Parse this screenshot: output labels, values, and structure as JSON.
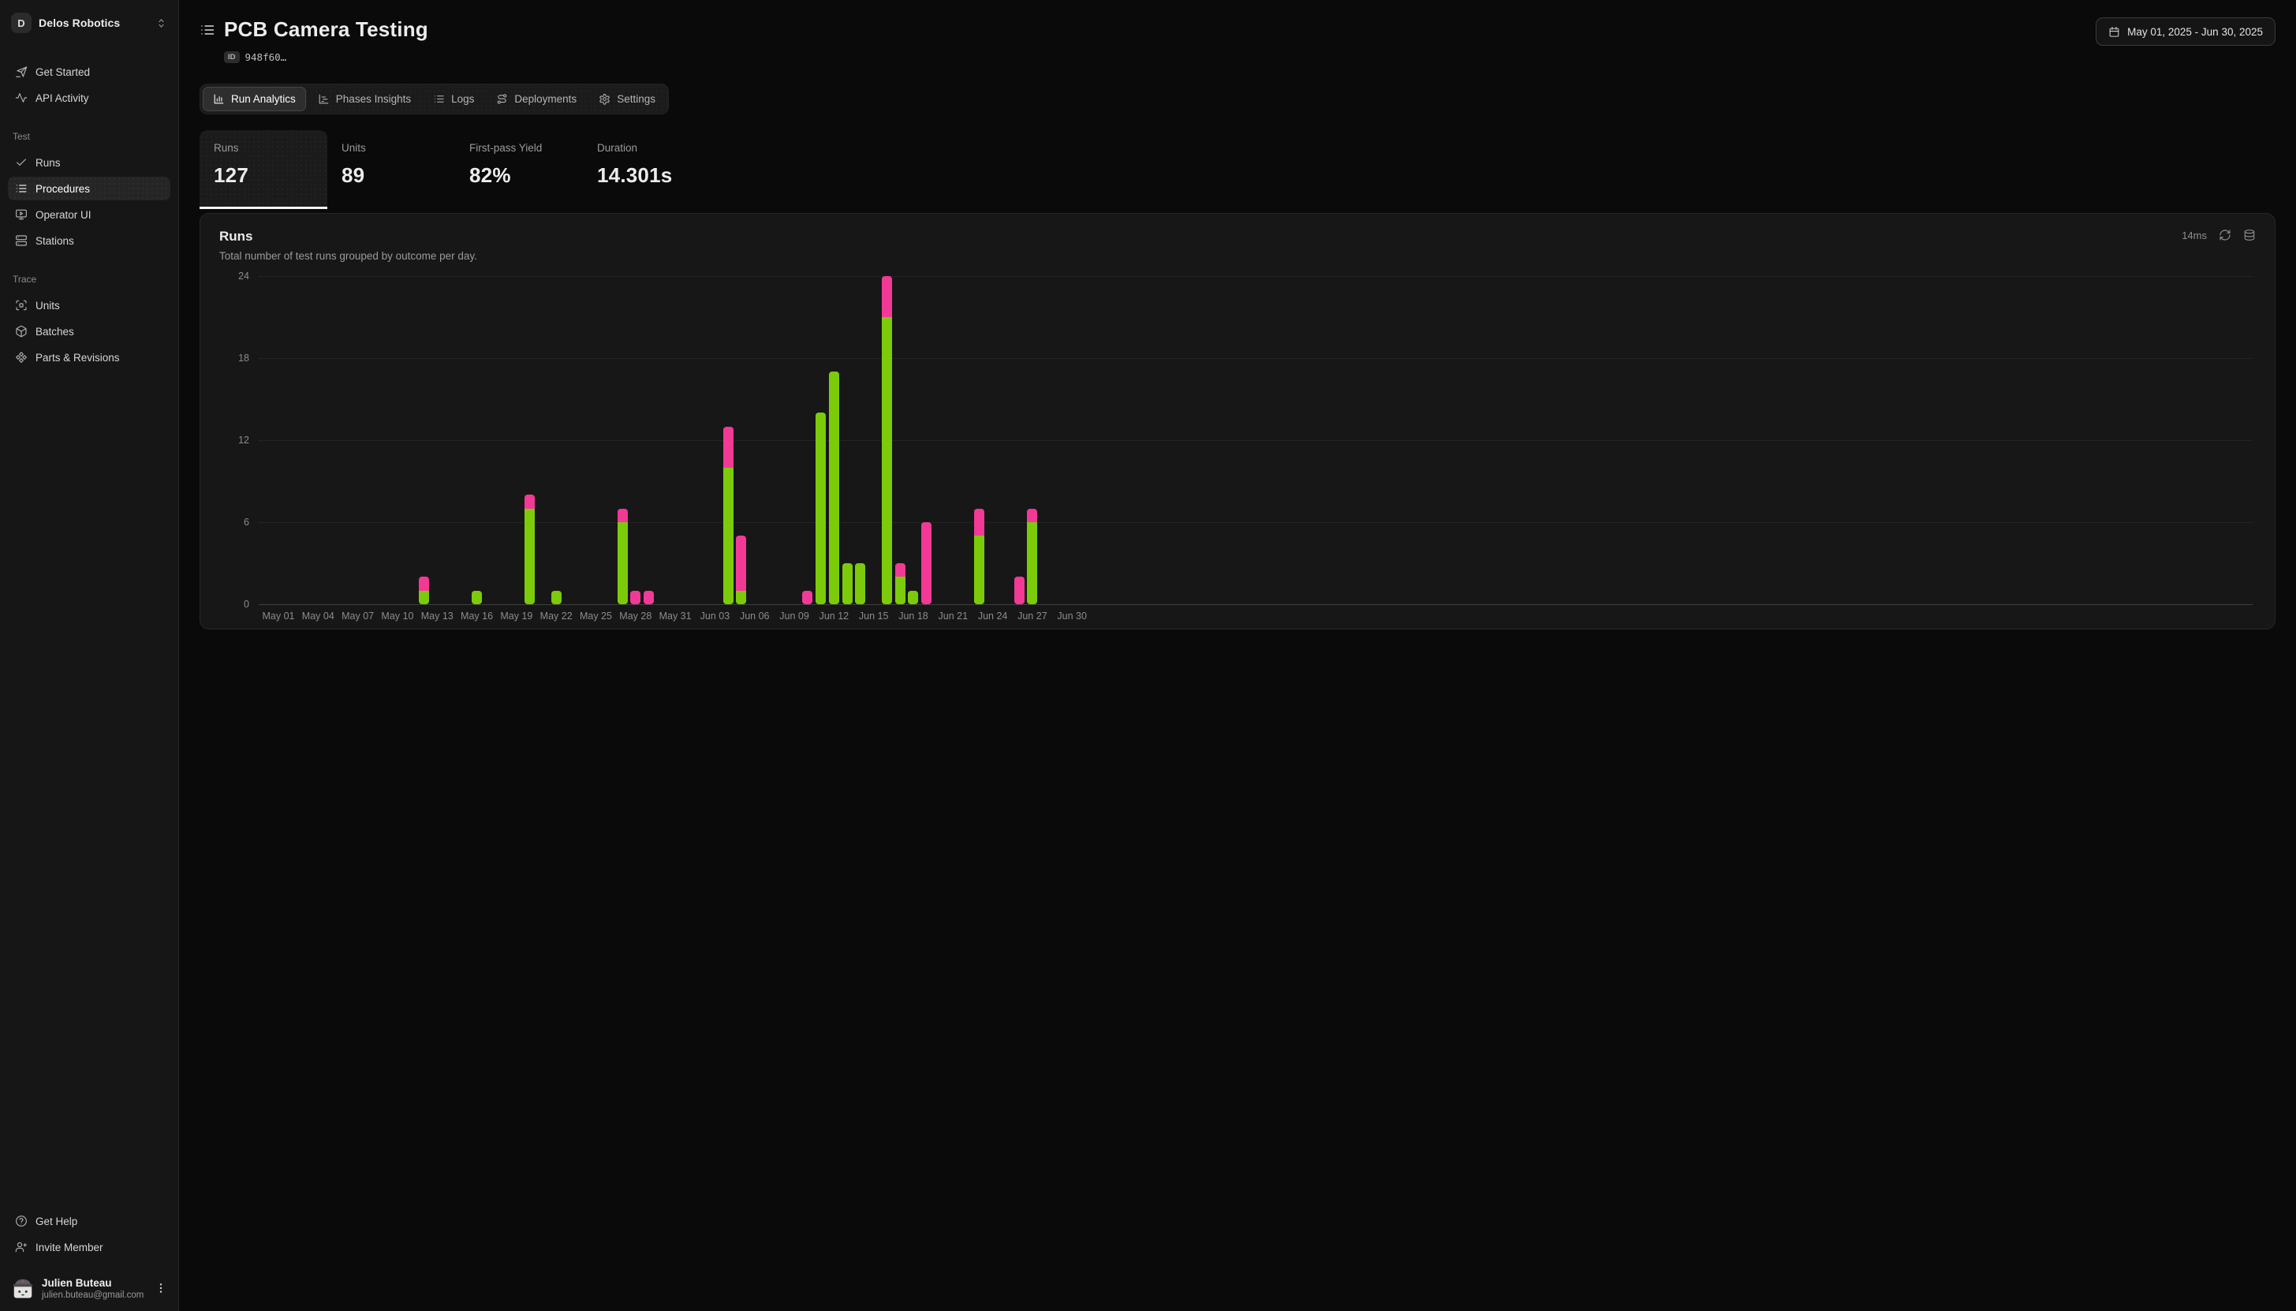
{
  "sidebar": {
    "org": {
      "initial": "D",
      "name": "Delos Robotics"
    },
    "top_items": [
      {
        "icon": "send",
        "label": "Get Started"
      },
      {
        "icon": "activity",
        "label": "API Activity"
      }
    ],
    "sections": [
      {
        "label": "Test",
        "items": [
          {
            "icon": "check",
            "label": "Runs",
            "active": false
          },
          {
            "icon": "list",
            "label": "Procedures",
            "active": true
          },
          {
            "icon": "monitor-play",
            "label": "Operator UI",
            "active": false
          },
          {
            "icon": "server",
            "label": "Stations",
            "active": false
          }
        ]
      },
      {
        "label": "Trace",
        "items": [
          {
            "icon": "scan",
            "label": "Units",
            "active": false
          },
          {
            "icon": "box",
            "label": "Batches",
            "active": false
          },
          {
            "icon": "component",
            "label": "Parts & Revisions",
            "active": false
          }
        ]
      }
    ],
    "footer_items": [
      {
        "icon": "help-circle",
        "label": "Get Help"
      },
      {
        "icon": "user-plus",
        "label": "Invite Member"
      }
    ],
    "user": {
      "name": "Julien Buteau",
      "email": "julien.buteau@gmail.com"
    }
  },
  "header": {
    "title": "PCB Camera Testing",
    "id_badge": "ID",
    "id_value": "948f60…",
    "date_range": "May 01, 2025 - Jun 30, 2025"
  },
  "tabs": [
    {
      "icon": "bar-chart",
      "label": "Run Analytics",
      "active": true
    },
    {
      "icon": "chart-gantt",
      "label": "Phases Insights",
      "active": false
    },
    {
      "icon": "logs",
      "label": "Logs",
      "active": false
    },
    {
      "icon": "route",
      "label": "Deployments",
      "active": false
    },
    {
      "icon": "settings",
      "label": "Settings",
      "active": false
    }
  ],
  "stats": [
    {
      "label": "Runs",
      "value": "127",
      "active": true
    },
    {
      "label": "Units",
      "value": "89",
      "active": false
    },
    {
      "label": "First-pass Yield",
      "value": "82%",
      "active": false
    },
    {
      "label": "Duration",
      "value": "14.301s",
      "active": false
    }
  ],
  "chart_card": {
    "title": "Runs",
    "subtitle": "Total number of test runs grouped by outcome per day.",
    "latency": "14ms"
  },
  "colors": {
    "pass": "#7ccb0a",
    "fail": "#f23996"
  },
  "chart_data": {
    "type": "bar",
    "stacked": true,
    "title": "Runs",
    "xlabel": "",
    "ylabel": "",
    "ylim": [
      0,
      24
    ],
    "y_ticks": [
      0,
      6,
      12,
      18,
      24
    ],
    "grid": "horizontal-dotted",
    "legend": "none",
    "x_axis_days": 61,
    "x_tick_labels": [
      "May 01",
      "May 04",
      "May 07",
      "May 10",
      "May 13",
      "May 16",
      "May 19",
      "May 22",
      "May 25",
      "May 28",
      "May 31",
      "Jun 03",
      "Jun 06",
      "Jun 09",
      "Jun 12",
      "Jun 15",
      "Jun 18",
      "Jun 21",
      "Jun 24",
      "Jun 27",
      "Jun 30"
    ],
    "series": [
      {
        "name": "pass",
        "color": "#7ccb0a"
      },
      {
        "name": "fail",
        "color": "#f23996"
      }
    ],
    "bars": [
      {
        "day_index": 12,
        "date": "May 12",
        "pass": 1,
        "fail": 1
      },
      {
        "day_index": 16,
        "date": "May 16",
        "pass": 1,
        "fail": 0
      },
      {
        "day_index": 20,
        "date": "May 20",
        "pass": 7,
        "fail": 1
      },
      {
        "day_index": 22,
        "date": "May 22",
        "pass": 1,
        "fail": 0
      },
      {
        "day_index": 27,
        "date": "May 27",
        "pass": 6,
        "fail": 1
      },
      {
        "day_index": 28,
        "date": "May 28",
        "pass": 0,
        "fail": 1
      },
      {
        "day_index": 29,
        "date": "May 29",
        "pass": 0,
        "fail": 1
      },
      {
        "day_index": 35,
        "date": "Jun 04",
        "pass": 10,
        "fail": 3
      },
      {
        "day_index": 36,
        "date": "Jun 05",
        "pass": 1,
        "fail": 4
      },
      {
        "day_index": 41,
        "date": "Jun 10",
        "pass": 0,
        "fail": 1
      },
      {
        "day_index": 42,
        "date": "Jun 11",
        "pass": 14,
        "fail": 0
      },
      {
        "day_index": 43,
        "date": "Jun 12",
        "pass": 17,
        "fail": 0
      },
      {
        "day_index": 44,
        "date": "Jun 13",
        "pass": 3,
        "fail": 0
      },
      {
        "day_index": 45,
        "date": "Jun 14",
        "pass": 3,
        "fail": 0
      },
      {
        "day_index": 47,
        "date": "Jun 16",
        "pass": 21,
        "fail": 3
      },
      {
        "day_index": 48,
        "date": "Jun 17",
        "pass": 2,
        "fail": 1
      },
      {
        "day_index": 49,
        "date": "Jun 18",
        "pass": 1,
        "fail": 0
      },
      {
        "day_index": 50,
        "date": "Jun 19",
        "pass": 0,
        "fail": 6
      },
      {
        "day_index": 54,
        "date": "Jun 23",
        "pass": 5,
        "fail": 2
      },
      {
        "day_index": 57,
        "date": "Jun 26",
        "pass": 0,
        "fail": 2
      },
      {
        "day_index": 58,
        "date": "Jun 27",
        "pass": 6,
        "fail": 1
      }
    ],
    "totals": {
      "pass": 99,
      "fail": 28,
      "all": 127
    }
  }
}
